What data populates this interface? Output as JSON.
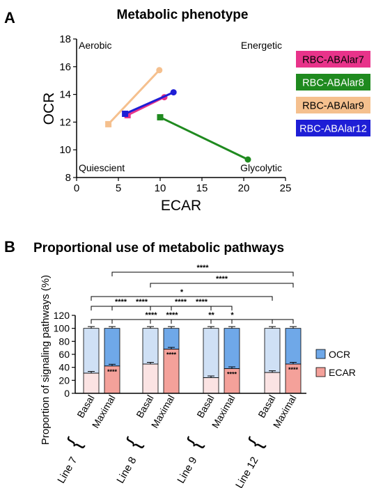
{
  "chart_data": [
    {
      "type": "line",
      "panel": "A",
      "title": "Metabolic phenotype",
      "xlabel": "ECAR",
      "ylabel": "OCR",
      "xlim": [
        0,
        25
      ],
      "ylim": [
        8,
        18
      ],
      "x_ticks": [
        0,
        5,
        10,
        15,
        20,
        25
      ],
      "y_ticks": [
        8,
        10,
        12,
        14,
        16,
        18
      ],
      "quadrant_labels": [
        "Aerobic",
        "Energetic",
        "Quiescient",
        "Glycolytic"
      ],
      "legend_position": "right",
      "series": [
        {
          "name": "RBC-ABAlar7",
          "color": "#e8338a",
          "points": [
            [
              6.1,
              12.5
            ],
            [
              10.5,
              13.8
            ]
          ]
        },
        {
          "name": "RBC-ABAlar8",
          "color": "#1f8a1f",
          "points": [
            [
              10.0,
              12.35
            ],
            [
              20.5,
              9.3
            ]
          ]
        },
        {
          "name": "RBC-ABAlar9",
          "color": "#f5c08e",
          "points": [
            [
              3.8,
              11.85
            ],
            [
              9.9,
              15.75
            ]
          ]
        },
        {
          "name": "RBC-ABAlar12",
          "color": "#1e1ed6",
          "points": [
            [
              5.8,
              12.6
            ],
            [
              11.6,
              14.15
            ]
          ]
        }
      ]
    },
    {
      "type": "bar",
      "panel": "B",
      "stacked": true,
      "title": "Proportional use of metabolic pathways",
      "ylabel": "Proportion of signaling pathways (%)",
      "ylim": [
        0,
        120
      ],
      "y_ticks": [
        0,
        20,
        40,
        60,
        80,
        100,
        120
      ],
      "legend_position": "right",
      "groups": [
        {
          "line": "Line 7",
          "conditions": [
            "Basal",
            "Maximal"
          ]
        },
        {
          "line": "Line 8",
          "conditions": [
            "Basal",
            "Maximal"
          ]
        },
        {
          "line": "Line 9",
          "conditions": [
            "Basal",
            "Maximal"
          ]
        },
        {
          "line": "Line 12",
          "conditions": [
            "Basal",
            "Maximal"
          ]
        }
      ],
      "series": [
        {
          "name": "ECAR",
          "values": [
            31,
            42,
            45,
            68,
            24,
            38,
            32,
            45
          ]
        },
        {
          "name": "OCR",
          "values": [
            69,
            58,
            55,
            32,
            76,
            62,
            68,
            55
          ]
        }
      ],
      "bar_stars": [
        "",
        "****",
        "",
        "****",
        "",
        "****",
        "",
        "****"
      ],
      "brackets": [
        {
          "from": 0,
          "to": 4,
          "label": "****"
        },
        {
          "from": 1,
          "to": 5,
          "label": "****"
        },
        {
          "from": 2,
          "to": 6,
          "label": "**"
        },
        {
          "from": 3,
          "to": 7,
          "label": "*"
        },
        {
          "from": 0,
          "to": 2,
          "label": "****"
        },
        {
          "from": 1,
          "to": 3,
          "label": "****"
        },
        {
          "from": 2,
          "to": 4,
          "label": "****"
        },
        {
          "from": 3,
          "to": 5,
          "label": "****"
        },
        {
          "from": 0,
          "to": 6,
          "label": "*"
        },
        {
          "from": 2,
          "to": 7,
          "label": "****"
        },
        {
          "from": 1,
          "to": 7,
          "label": "****"
        }
      ]
    }
  ],
  "panel_labels": [
    "A",
    "B"
  ],
  "colors": {
    "ocr_basal": "#cfe0f5",
    "ocr_maximal": "#6fa8e8",
    "ecar_basal": "#fbe3e3",
    "ecar_maximal": "#f4a19a",
    "legend_ocr": "#6fa8e8",
    "legend_ecar": "#f4a19a"
  }
}
